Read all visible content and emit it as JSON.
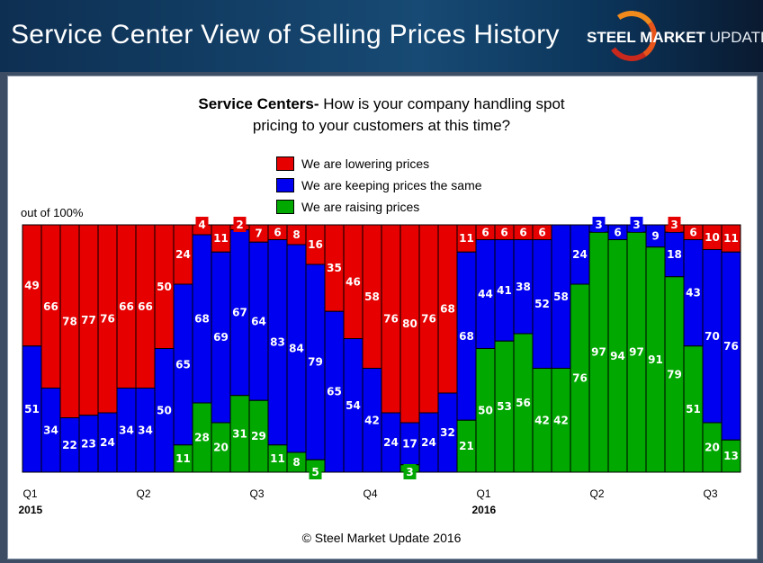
{
  "header": {
    "title": "Service Center View of Selling Prices History",
    "logo_bold": "STEEL MARKET",
    "logo_light": "UPDATE"
  },
  "question": {
    "bold": "Service Centers-",
    "line1": " How is your company handling spot",
    "line2": "pricing to your customers at this time?"
  },
  "copyright": "© Steel Market Update 2016",
  "colors": {
    "lowering": "#e60000",
    "same": "#0000f0",
    "raising": "#00a800"
  },
  "chart_data": {
    "type": "bar",
    "stacked": true,
    "ylabel": "out of 100%",
    "ylim": [
      0,
      100
    ],
    "legend": "top-center",
    "x_tick_labels": [
      {
        "index": 0,
        "label": "Q1",
        "year": "2015"
      },
      {
        "index": 6,
        "label": "Q2"
      },
      {
        "index": 12,
        "label": "Q3"
      },
      {
        "index": 18,
        "label": "Q4"
      },
      {
        "index": 24,
        "label": "Q1",
        "year": "2016"
      },
      {
        "index": 30,
        "label": "Q2"
      },
      {
        "index": 36,
        "label": "Q3"
      }
    ],
    "series": [
      {
        "name": "We are lowering prices",
        "key": "lowering",
        "values": [
          49,
          66,
          78,
          77,
          76,
          66,
          66,
          50,
          24,
          4,
          11,
          2,
          7,
          6,
          8,
          16,
          35,
          46,
          58,
          76,
          80,
          76,
          68,
          11,
          6,
          6,
          6,
          6,
          0,
          0,
          0,
          0,
          0,
          0,
          3,
          6,
          10,
          11
        ]
      },
      {
        "name": "We are keeping prices the same",
        "key": "same",
        "values": [
          51,
          34,
          22,
          23,
          24,
          34,
          34,
          50,
          65,
          68,
          69,
          67,
          64,
          83,
          84,
          79,
          65,
          54,
          42,
          24,
          17,
          24,
          32,
          68,
          44,
          41,
          38,
          52,
          58,
          24,
          3,
          6,
          3,
          9,
          18,
          43,
          70,
          76
        ]
      },
      {
        "name": "We are raising prices",
        "key": "raising",
        "values": [
          0,
          0,
          0,
          0,
          0,
          0,
          0,
          0,
          11,
          28,
          20,
          31,
          29,
          11,
          8,
          5,
          0,
          0,
          0,
          0,
          3,
          0,
          0,
          21,
          50,
          53,
          56,
          42,
          42,
          76,
          97,
          94,
          97,
          91,
          79,
          51,
          20,
          13
        ]
      }
    ]
  }
}
